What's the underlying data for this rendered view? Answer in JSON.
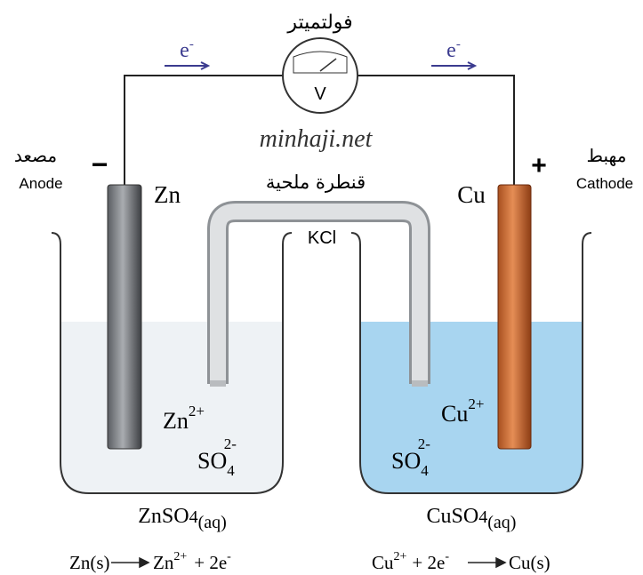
{
  "voltmeter": {
    "label": "فولتميتر",
    "symbol": "V"
  },
  "electron_flow": [
    {
      "base": "e",
      "sup": "-"
    },
    {
      "base": "e",
      "sup": "-"
    }
  ],
  "watermark": "minhaji.net",
  "anode": {
    "label_ar": "مصعد",
    "label_en": "Anode",
    "sign": "−",
    "electrode": "Zn"
  },
  "cathode": {
    "label_ar": "مهبط",
    "label_en": "Cathode",
    "sign": "+",
    "electrode": "Cu"
  },
  "salt_bridge": {
    "label": "قنطرة ملحية",
    "content": "KCl"
  },
  "left_beaker": {
    "cation": {
      "base": "Zn",
      "sup": "2+"
    },
    "anion": {
      "base": "SO",
      "sub": "4",
      "sup": "2-"
    },
    "solution": {
      "base": "ZnSO",
      "sub": "4",
      "state": "(aq)"
    }
  },
  "right_beaker": {
    "cation": {
      "base": "Cu",
      "sup": "2+"
    },
    "anion": {
      "base": "SO",
      "sub": "4",
      "sup": "2-"
    },
    "solution": {
      "base": "CuSO",
      "sub": "4",
      "state": "(aq)"
    }
  },
  "equations": [
    {
      "reactant": "Zn(s)",
      "product": "Zn",
      "product_sup": "2+",
      "electrons": "+ 2e",
      "electrons_sup": "-"
    },
    {
      "reactant": "Cu",
      "reactant_sup": "2+",
      "electrons": "+ 2e",
      "electrons_sup": "-",
      "product": "Cu(s)"
    }
  ]
}
